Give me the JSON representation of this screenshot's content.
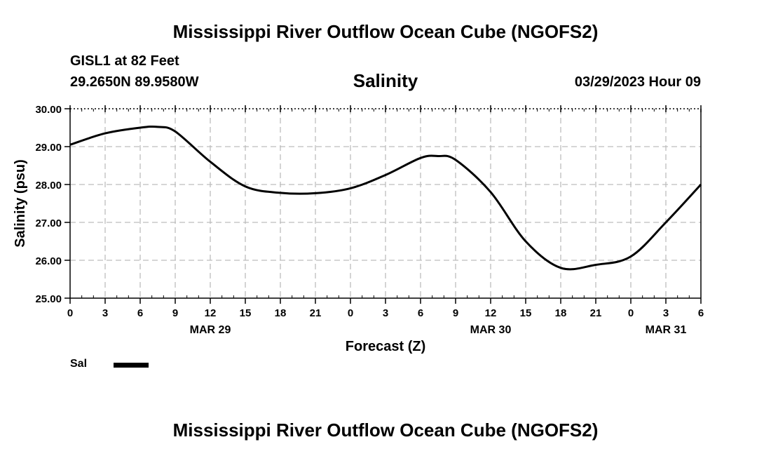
{
  "header": {
    "title": "Mississippi River Outflow Ocean Cube (NGOFS2)",
    "station": "GISL1 at 82 Feet",
    "coordinates": "29.2650N  89.9580W",
    "datetime": "03/29/2023 Hour 09"
  },
  "footer": {
    "title": "Mississippi River Outflow Ocean Cube (NGOFS2)"
  },
  "legend": {
    "label": "Sal",
    "color": "#000000"
  },
  "chart_data": {
    "type": "line",
    "title": "Salinity",
    "xlabel": "Forecast (Z)",
    "ylabel": "Salinity (psu)",
    "ylim": [
      25.0,
      30.0
    ],
    "xlim": [
      0,
      54
    ],
    "grid": true,
    "legend_position": "bottom-left",
    "y_ticks": [
      "25.00",
      "26.00",
      "27.00",
      "28.00",
      "29.00",
      "30.00"
    ],
    "y_tick_values": [
      25,
      26,
      27,
      28,
      29,
      30
    ],
    "x_tick_labels": [
      "0",
      "3",
      "6",
      "9",
      "12",
      "15",
      "18",
      "21",
      "0",
      "3",
      "6",
      "9",
      "12",
      "15",
      "18",
      "21",
      "0",
      "3",
      "6"
    ],
    "date_labels": [
      {
        "label": "MAR 29",
        "hour": 12
      },
      {
        "label": "MAR 30",
        "hour": 36
      },
      {
        "label": "MAR 31",
        "hour": 51
      }
    ],
    "series": [
      {
        "name": "Sal",
        "x": [
          0,
          3,
          6,
          7.5,
          9,
          12,
          15,
          18,
          21,
          24,
          27,
          30,
          31.5,
          33,
          36,
          39,
          42,
          45,
          48,
          51,
          54
        ],
        "values": [
          29.05,
          29.35,
          29.5,
          29.52,
          29.4,
          28.6,
          27.95,
          27.78,
          27.77,
          27.9,
          28.25,
          28.7,
          28.75,
          28.65,
          27.8,
          26.5,
          25.8,
          25.88,
          26.1,
          27.0,
          28.0
        ]
      }
    ]
  }
}
